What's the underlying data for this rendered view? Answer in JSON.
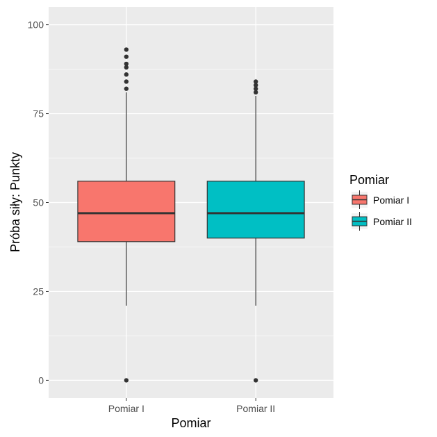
{
  "chart_data": {
    "type": "boxplot",
    "title": "",
    "xlabel": "Pomiar",
    "ylabel": "Próba siły: Punkty",
    "ylim": [
      -5,
      105
    ],
    "yticks": [
      0,
      25,
      50,
      75,
      100
    ],
    "yticklabels": [
      "0",
      "25",
      "50",
      "75",
      "100"
    ],
    "categories": [
      "Pomiar I",
      "Pomiar II"
    ],
    "boxes": [
      {
        "category": "Pomiar I",
        "whisker_low": 21,
        "q1": 39,
        "median": 47,
        "q3": 56,
        "whisker_high": 81,
        "outliers": [
          0,
          82,
          84,
          86,
          88,
          89,
          91,
          93
        ],
        "color": "#F8766D"
      },
      {
        "category": "Pomiar II",
        "whisker_low": 21,
        "q1": 40,
        "median": 47,
        "q3": 56,
        "whisker_high": 80,
        "outliers": [
          0,
          81,
          82,
          83,
          84
        ],
        "color": "#00BFC4"
      }
    ],
    "legend": {
      "title": "Pomiar",
      "position": "right",
      "entries": [
        {
          "label": "Pomiar I",
          "color": "#F8766D"
        },
        {
          "label": "Pomiar II",
          "color": "#00BFC4"
        }
      ]
    },
    "grid": true,
    "panel_background": "#EBEBEB",
    "grid_color": "#FFFFFF"
  }
}
